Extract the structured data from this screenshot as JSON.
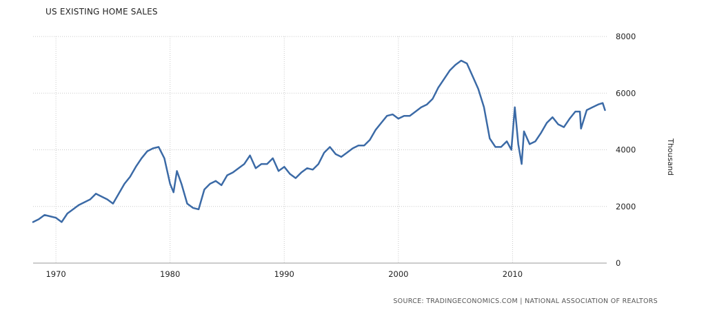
{
  "chart_data": {
    "type": "line",
    "title": "US EXISTING HOME SALES",
    "ylabel": "Thousand",
    "source": "SOURCE: TRADINGECONOMICS.COM | NATIONAL ASSOCIATION OF REALTORS",
    "xlim": [
      1968.0,
      2018.25
    ],
    "ylim": [
      0,
      8000
    ],
    "x_ticks": [
      1970,
      1980,
      1990,
      2000,
      2010
    ],
    "y_ticks": [
      0,
      2000,
      4000,
      6000,
      8000
    ],
    "grid": true,
    "line_color": "#3b6aa6",
    "series": [
      {
        "x": [
          1968.0,
          1968.5,
          1969.0,
          1969.5,
          1970.0,
          1970.5,
          1971.0,
          1971.5,
          1972.0,
          1972.5,
          1973.0,
          1973.5,
          1974.0,
          1974.5,
          1975.0,
          1975.5,
          1976.0,
          1976.5,
          1977.0,
          1977.5,
          1978.0,
          1978.5,
          1979.0,
          1979.5,
          1980.0,
          1980.3,
          1980.6,
          1981.0,
          1981.5,
          1982.0,
          1982.5,
          1983.0,
          1983.5,
          1984.0,
          1984.5,
          1985.0,
          1985.5,
          1986.0,
          1986.5,
          1987.0,
          1987.5,
          1988.0,
          1988.5,
          1989.0,
          1989.5,
          1990.0,
          1990.5,
          1991.0,
          1991.5,
          1992.0,
          1992.5,
          1993.0,
          1993.5,
          1994.0,
          1994.5,
          1995.0,
          1995.5,
          1996.0,
          1996.5,
          1997.0,
          1997.5,
          1998.0,
          1998.5,
          1999.0,
          1999.5,
          2000.0,
          2000.5,
          2001.0,
          2001.5,
          2002.0,
          2002.5,
          2003.0,
          2003.5,
          2004.0,
          2004.5,
          2005.0,
          2005.5,
          2006.0,
          2006.5,
          2007.0,
          2007.5,
          2008.0,
          2008.5,
          2009.0,
          2009.5,
          2009.9,
          2010.2,
          2010.5,
          2010.8,
          2011.0,
          2011.5,
          2012.0,
          2012.5,
          2013.0,
          2013.5,
          2014.0,
          2014.5,
          2015.0,
          2015.5,
          2015.9,
          2016.0,
          2016.5,
          2017.0,
          2017.5,
          2017.9,
          2018.1
        ],
        "y": [
          1450,
          1550,
          1700,
          1650,
          1600,
          1450,
          1750,
          1900,
          2050,
          2150,
          2250,
          2450,
          2350,
          2250,
          2100,
          2450,
          2800,
          3050,
          3400,
          3700,
          3950,
          4050,
          4100,
          3700,
          2800,
          2500,
          3250,
          2800,
          2100,
          1950,
          1900,
          2600,
          2800,
          2900,
          2750,
          3100,
          3200,
          3350,
          3500,
          3800,
          3350,
          3500,
          3500,
          3700,
          3250,
          3400,
          3150,
          3000,
          3200,
          3350,
          3300,
          3500,
          3900,
          4100,
          3850,
          3750,
          3900,
          4050,
          4150,
          4150,
          4350,
          4700,
          4950,
          5200,
          5250,
          5100,
          5200,
          5200,
          5350,
          5500,
          5600,
          5800,
          6200,
          6500,
          6800,
          7000,
          7150,
          7050,
          6600,
          6150,
          5500,
          4400,
          4100,
          4100,
          4300,
          4000,
          5500,
          4200,
          3500,
          4650,
          4200,
          4300,
          4600,
          4950,
          5150,
          4900,
          4800,
          5100,
          5350,
          5350,
          4750,
          5400,
          5500,
          5600,
          5650,
          5400
        ]
      }
    ]
  }
}
